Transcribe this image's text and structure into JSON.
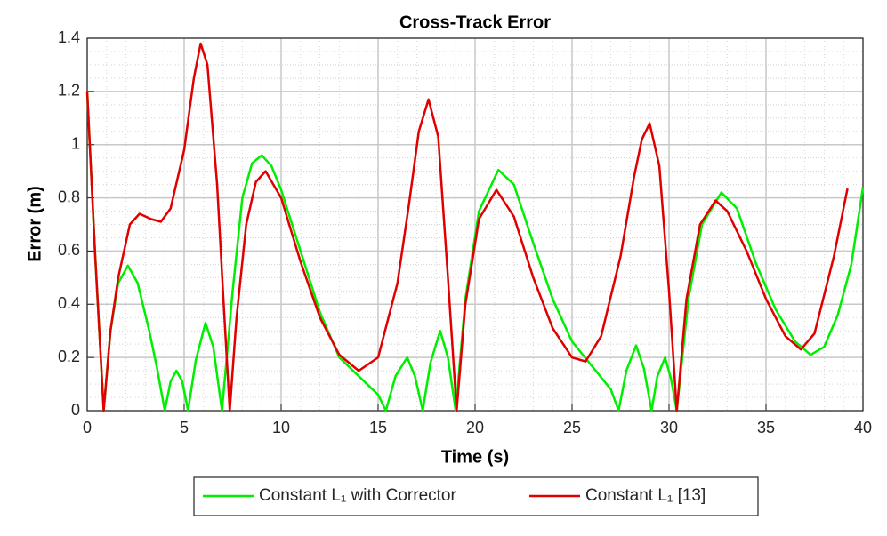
{
  "chart_data": {
    "type": "line",
    "title": "Cross-Track Error",
    "x_label": "Time (s)",
    "y_label": "Error (m)",
    "xlim": [
      0,
      40
    ],
    "xticks": [
      0,
      5,
      10,
      15,
      20,
      25,
      30,
      35,
      40
    ],
    "ylim": [
      0,
      1.4
    ],
    "yticks": [
      0,
      0.2,
      0.4,
      0.6,
      0.8,
      1,
      1.2,
      1.4
    ],
    "grid": true,
    "minor_grid": true,
    "legend": "bottom-outside",
    "series": [
      {
        "name": "Constant L₁ with Corrector",
        "color": "#00ee00",
        "x": [
          0,
          0.4,
          0.85,
          1.2,
          1.6,
          2.1,
          2.6,
          3.2,
          3.6,
          4.0,
          4.3,
          4.6,
          4.9,
          5.2,
          5.6,
          6.1,
          6.5,
          6.95,
          7.5,
          8.0,
          8.5,
          9.0,
          9.5,
          10,
          11,
          12,
          13,
          14,
          15,
          15.4,
          15.9,
          16.5,
          16.9,
          17.3,
          17.7,
          18.2,
          18.6,
          19.0,
          19.5,
          20.2,
          21.2,
          22,
          23,
          24,
          25,
          26,
          27,
          27.4,
          27.8,
          28.3,
          28.7,
          29.1,
          29.4,
          29.8,
          30.1,
          30.4,
          31,
          31.7,
          32.7,
          33.5,
          34.5,
          35.5,
          36.5,
          37.3,
          38,
          38.7,
          39.4,
          40
        ],
        "values": [
          1.2,
          0.6,
          0,
          0.3,
          0.48,
          0.545,
          0.48,
          0.3,
          0.16,
          0,
          0.11,
          0.15,
          0.11,
          0,
          0.19,
          0.33,
          0.24,
          0,
          0.45,
          0.8,
          0.93,
          0.96,
          0.92,
          0.83,
          0.6,
          0.37,
          0.2,
          0.13,
          0.06,
          0,
          0.13,
          0.2,
          0.13,
          0,
          0.18,
          0.3,
          0.2,
          0,
          0.42,
          0.75,
          0.905,
          0.85,
          0.63,
          0.42,
          0.26,
          0.17,
          0.08,
          0,
          0.15,
          0.245,
          0.16,
          0,
          0.13,
          0.2,
          0.12,
          0,
          0.42,
          0.7,
          0.82,
          0.76,
          0.55,
          0.38,
          0.26,
          0.21,
          0.24,
          0.36,
          0.55,
          0.84
        ]
      },
      {
        "name": "Constant L₁ [13]",
        "color": "#e00000",
        "x": [
          0,
          0.4,
          0.85,
          1.2,
          1.6,
          2.2,
          2.7,
          3.3,
          3.8,
          4.3,
          5.0,
          5.5,
          5.85,
          6.2,
          6.7,
          7.0,
          7.35,
          7.7,
          8.2,
          8.7,
          9.2,
          10,
          11,
          12,
          13,
          14,
          15,
          16,
          16.6,
          17.1,
          17.6,
          18.1,
          18.6,
          19.05,
          19.5,
          20.2,
          21.1,
          22,
          23,
          24,
          25,
          25.7,
          26.5,
          27.5,
          28.2,
          28.6,
          29.0,
          29.5,
          30,
          30.4,
          30.9,
          31.6,
          32.4,
          33,
          34,
          35,
          36,
          36.8,
          37.5,
          38.5,
          39.2
        ],
        "values": [
          1.2,
          0.6,
          0,
          0.3,
          0.5,
          0.7,
          0.74,
          0.72,
          0.71,
          0.76,
          0.98,
          1.25,
          1.38,
          1.3,
          0.85,
          0.45,
          0,
          0.35,
          0.7,
          0.86,
          0.9,
          0.8,
          0.56,
          0.35,
          0.21,
          0.15,
          0.2,
          0.48,
          0.78,
          1.05,
          1.17,
          1.03,
          0.5,
          0,
          0.4,
          0.72,
          0.83,
          0.73,
          0.5,
          0.31,
          0.2,
          0.185,
          0.28,
          0.58,
          0.88,
          1.02,
          1.08,
          0.92,
          0.45,
          0,
          0.42,
          0.7,
          0.79,
          0.75,
          0.6,
          0.42,
          0.28,
          0.23,
          0.29,
          0.58,
          0.835
        ]
      }
    ]
  }
}
